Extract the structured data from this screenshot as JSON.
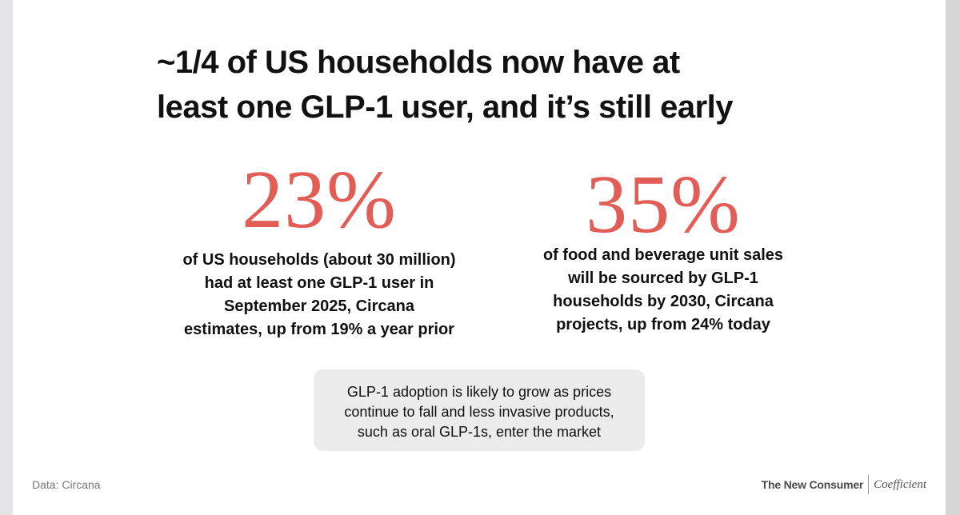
{
  "title": {
    "line1": "~1/4 of US households now have at",
    "line2": "least one GLP-1 user, and it’s still early"
  },
  "stats": [
    {
      "value": "23%",
      "lines": [
        "of US households (about 30 million)",
        "had at least one GLP-1 user in",
        "September 2025, Circana",
        "estimates, up from 19% a year prior"
      ]
    },
    {
      "value": "35%",
      "lines": [
        "of food and beverage unit sales",
        "will be sourced by GLP-1",
        "households by 2030, Circana",
        "projects, up from 24% today"
      ]
    }
  ],
  "callout": {
    "lines": [
      "GLP-1 adoption is likely to grow as prices",
      "continue to fall and less invasive products,",
      "such as oral GLP-1s, enter the market"
    ]
  },
  "footer": {
    "source": "Data: Circana",
    "brand_primary": "The New Consumer",
    "brand_secondary": "Coefficient"
  },
  "colors": {
    "accent": "#e35d57",
    "callout_bg": "#ebebeb",
    "text": "#111111"
  }
}
